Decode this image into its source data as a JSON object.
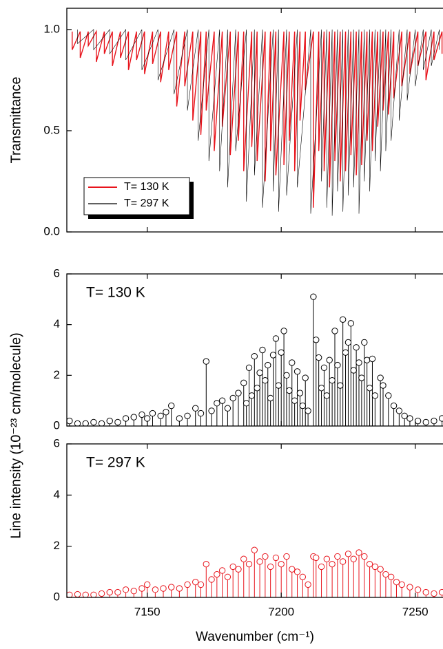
{
  "chart_data": [
    {
      "type": "line",
      "y_label": "Transmittance",
      "xlim": [
        7120,
        7261
      ],
      "xticks": [
        7150,
        7200,
        7250
      ],
      "xtick_labels": false,
      "ylim": [
        0,
        1.105
      ],
      "yticks": [
        {
          "value": 0,
          "label": "0.0"
        },
        0.5,
        {
          "value": 1,
          "label": "1.0"
        }
      ],
      "legend": "lower left",
      "series": [
        {
          "name": "T= 130 K",
          "color": "#e8141c",
          "text_color": "#000000",
          "width": 1.4,
          "x": [
            7122,
            7122,
            7125,
            7125,
            7128,
            7128,
            7131,
            7131,
            7134,
            7134,
            7137,
            7137,
            7140,
            7140,
            7143,
            7143,
            7146,
            7146,
            7149,
            7149,
            7152,
            7152,
            7155,
            7155,
            7158,
            7158,
            7161,
            7161,
            7164,
            7164,
            7167,
            7167,
            7170,
            7170,
            7172,
            7172,
            7175,
            7175,
            7178,
            7178,
            7181,
            7181,
            7184,
            7184,
            7186,
            7186,
            7189,
            7189,
            7191,
            7191,
            7194,
            7194,
            7196,
            7196,
            7198,
            7198,
            7201,
            7201,
            7203,
            7203,
            7205,
            7205,
            7207,
            7207,
            7209,
            7209,
            7212,
            7212,
            7214,
            7214,
            7216,
            7216,
            7218,
            7218,
            7220,
            7220,
            7222,
            7222,
            7224,
            7224,
            7226,
            7226,
            7228,
            7228,
            7230,
            7230,
            7232,
            7232,
            7234,
            7234,
            7236,
            7236,
            7238,
            7238,
            7240,
            7240,
            7242,
            7242,
            7245,
            7245,
            7248,
            7248,
            7251,
            7251,
            7254,
            7254,
            7257,
            7257,
            7260,
            7260
          ],
          "values": [
            0.99,
            0.9,
            0.99,
            0.86,
            0.99,
            0.92,
            0.99,
            0.84,
            0.99,
            0.88,
            0.99,
            0.82,
            0.99,
            0.86,
            0.99,
            0.8,
            0.99,
            0.85,
            0.99,
            0.78,
            0.99,
            0.83,
            0.99,
            0.74,
            0.99,
            0.8,
            0.99,
            0.62,
            0.99,
            0.72,
            0.99,
            0.55,
            0.99,
            0.48,
            0.99,
            0.6,
            0.99,
            0.4,
            0.99,
            0.52,
            0.99,
            0.38,
            0.99,
            0.45,
            0.99,
            0.3,
            0.99,
            0.42,
            0.99,
            0.35,
            0.99,
            0.25,
            0.99,
            0.4,
            0.99,
            0.28,
            0.99,
            0.33,
            0.99,
            0.45,
            0.99,
            0.3,
            0.99,
            0.55,
            0.99,
            0.7,
            0.99,
            0.12,
            0.99,
            0.4,
            0.99,
            0.3,
            0.99,
            0.22,
            0.99,
            0.35,
            0.99,
            0.25,
            0.99,
            0.3,
            0.99,
            0.38,
            0.99,
            0.28,
            0.99,
            0.33,
            0.99,
            0.45,
            0.99,
            0.4,
            0.99,
            0.52,
            0.99,
            0.6,
            0.99,
            0.58,
            0.99,
            0.66,
            0.99,
            0.72,
            0.99,
            0.78,
            0.99,
            0.82,
            0.99,
            0.75,
            0.99,
            0.85,
            0.99,
            0.88
          ]
        },
        {
          "name": "T= 297 K",
          "color": "#000000",
          "text_color": "#e8141c",
          "width": 0.6,
          "x": [
            7124,
            7124,
            7130,
            7130,
            7136,
            7136,
            7142,
            7142,
            7148,
            7148,
            7154,
            7154,
            7160,
            7160,
            7165,
            7165,
            7169,
            7169,
            7173,
            7173,
            7177,
            7177,
            7180,
            7180,
            7183,
            7183,
            7187,
            7187,
            7190,
            7190,
            7193,
            7193,
            7197,
            7197,
            7199,
            7199,
            7202,
            7202,
            7206,
            7206,
            7211,
            7211,
            7215,
            7215,
            7217,
            7217,
            7219,
            7219,
            7221,
            7221,
            7223,
            7223,
            7225,
            7225,
            7227,
            7227,
            7229,
            7229,
            7231,
            7231,
            7233,
            7233,
            7235,
            7235,
            7237,
            7237,
            7239,
            7239,
            7241,
            7241,
            7244,
            7244,
            7247,
            7247,
            7250,
            7250,
            7253,
            7253,
            7256,
            7256,
            7259,
            7259
          ],
          "values": [
            1,
            0.93,
            1,
            0.9,
            1,
            0.88,
            1,
            0.85,
            1,
            0.8,
            1,
            0.75,
            1,
            0.68,
            1,
            0.6,
            1,
            0.45,
            1,
            0.35,
            1,
            0.3,
            1,
            0.22,
            1,
            0.4,
            1,
            0.15,
            1,
            0.28,
            1,
            0.12,
            1,
            0.2,
            1,
            0.1,
            1,
            0.18,
            1,
            0.22,
            1,
            0.09,
            1,
            0.25,
            1,
            0.12,
            1,
            0.08,
            1,
            0.2,
            1,
            0.1,
            1,
            0.18,
            1,
            0.22,
            1,
            0.09,
            1,
            0.25,
            1,
            0.2,
            1,
            0.35,
            1,
            0.3,
            1,
            0.4,
            1,
            0.45,
            1,
            0.55,
            1,
            0.65,
            1,
            0.72,
            1,
            0.8,
            1,
            0.82,
            1,
            0.9
          ]
        }
      ]
    },
    {
      "type": "stem",
      "annotation": "T= 130 K",
      "annotation_color": "#000000",
      "y_label": "Line intensity (10⁻²³ cm/molecule)",
      "xlim": [
        7120,
        7261
      ],
      "xticks": [
        7150,
        7200,
        7250
      ],
      "xtick_labels": false,
      "ylim": [
        0,
        6
      ],
      "yticks": [
        0,
        2,
        4,
        6
      ],
      "series": [
        {
          "color": "#000000",
          "x": [
            7121,
            7124,
            7127,
            7130,
            7133,
            7136,
            7139,
            7142,
            7145,
            7148,
            7150,
            7152,
            7155,
            7157,
            7159,
            7162,
            7165,
            7168,
            7170,
            7172,
            7174,
            7176,
            7178,
            7180,
            7182,
            7184,
            7186,
            7187,
            7188,
            7189,
            7190,
            7191,
            7192,
            7193,
            7194,
            7195,
            7196,
            7197,
            7198,
            7199,
            7200,
            7201,
            7202,
            7203,
            7204,
            7205,
            7206,
            7207,
            7208,
            7209,
            7210,
            7212,
            7213,
            7214,
            7215,
            7216,
            7217,
            7218,
            7219,
            7220,
            7221,
            7222,
            7223,
            7224,
            7225,
            7226,
            7227,
            7228,
            7229,
            7230,
            7231,
            7232,
            7233,
            7234,
            7235,
            7237,
            7238,
            7240,
            7242,
            7244,
            7246,
            7248,
            7251,
            7254,
            7257,
            7260
          ],
          "values": [
            0.2,
            0.1,
            0.1,
            0.15,
            0.1,
            0.2,
            0.15,
            0.3,
            0.35,
            0.45,
            0.3,
            0.5,
            0.4,
            0.55,
            0.8,
            0.3,
            0.4,
            0.7,
            0.5,
            2.55,
            0.6,
            0.9,
            1.0,
            0.7,
            1.1,
            1.3,
            1.7,
            0.9,
            2.3,
            1.2,
            2.75,
            1.5,
            2.1,
            3.0,
            1.8,
            2.4,
            1.1,
            2.8,
            3.45,
            1.6,
            2.9,
            3.75,
            2.0,
            1.4,
            2.5,
            1.0,
            2.15,
            1.3,
            0.8,
            1.9,
            0.6,
            5.1,
            3.4,
            2.7,
            1.5,
            2.3,
            1.2,
            2.6,
            1.8,
            3.75,
            2.4,
            1.6,
            4.2,
            2.9,
            3.3,
            4.05,
            2.2,
            3.1,
            2.5,
            1.9,
            3.3,
            2.6,
            1.5,
            2.65,
            1.2,
            1.9,
            1.6,
            1.2,
            0.8,
            0.6,
            0.4,
            0.3,
            0.2,
            0.15,
            0.2,
            0.3
          ]
        }
      ]
    },
    {
      "type": "stem",
      "annotation": "T= 297 K",
      "annotation_color": "#e8141c",
      "x_label": "Wavenumber (cm⁻¹)",
      "xlim": [
        7120,
        7261
      ],
      "xticks": [
        7150,
        7200,
        7250
      ],
      "xtick_labels": true,
      "ylim": [
        0,
        6
      ],
      "yticks": [
        0,
        2,
        4,
        6
      ],
      "series": [
        {
          "color": "#e8141c",
          "x": [
            7121,
            7124,
            7127,
            7130,
            7133,
            7136,
            7139,
            7142,
            7145,
            7148,
            7150,
            7153,
            7156,
            7159,
            7162,
            7165,
            7168,
            7170,
            7172,
            7174,
            7176,
            7178,
            7180,
            7182,
            7184,
            7186,
            7188,
            7190,
            7192,
            7194,
            7196,
            7198,
            7200,
            7202,
            7204,
            7206,
            7208,
            7210,
            7212,
            7213,
            7215,
            7217,
            7219,
            7221,
            7223,
            7225,
            7227,
            7229,
            7231,
            7233,
            7235,
            7237,
            7239,
            7241,
            7243,
            7245,
            7248,
            7251,
            7254,
            7257,
            7260
          ],
          "values": [
            0.1,
            0.12,
            0.1,
            0.1,
            0.15,
            0.2,
            0.2,
            0.3,
            0.25,
            0.35,
            0.5,
            0.3,
            0.35,
            0.4,
            0.35,
            0.5,
            0.6,
            0.5,
            1.3,
            0.7,
            0.9,
            1.05,
            0.8,
            1.2,
            1.1,
            1.5,
            1.3,
            1.85,
            1.4,
            1.6,
            1.2,
            1.55,
            1.3,
            1.6,
            1.1,
            1.0,
            0.8,
            0.5,
            1.6,
            1.55,
            1.2,
            1.5,
            1.3,
            1.6,
            1.4,
            1.7,
            1.5,
            1.75,
            1.6,
            1.3,
            1.2,
            1.1,
            0.9,
            0.8,
            0.6,
            0.5,
            0.4,
            0.3,
            0.2,
            0.15,
            0.2
          ]
        }
      ]
    }
  ]
}
